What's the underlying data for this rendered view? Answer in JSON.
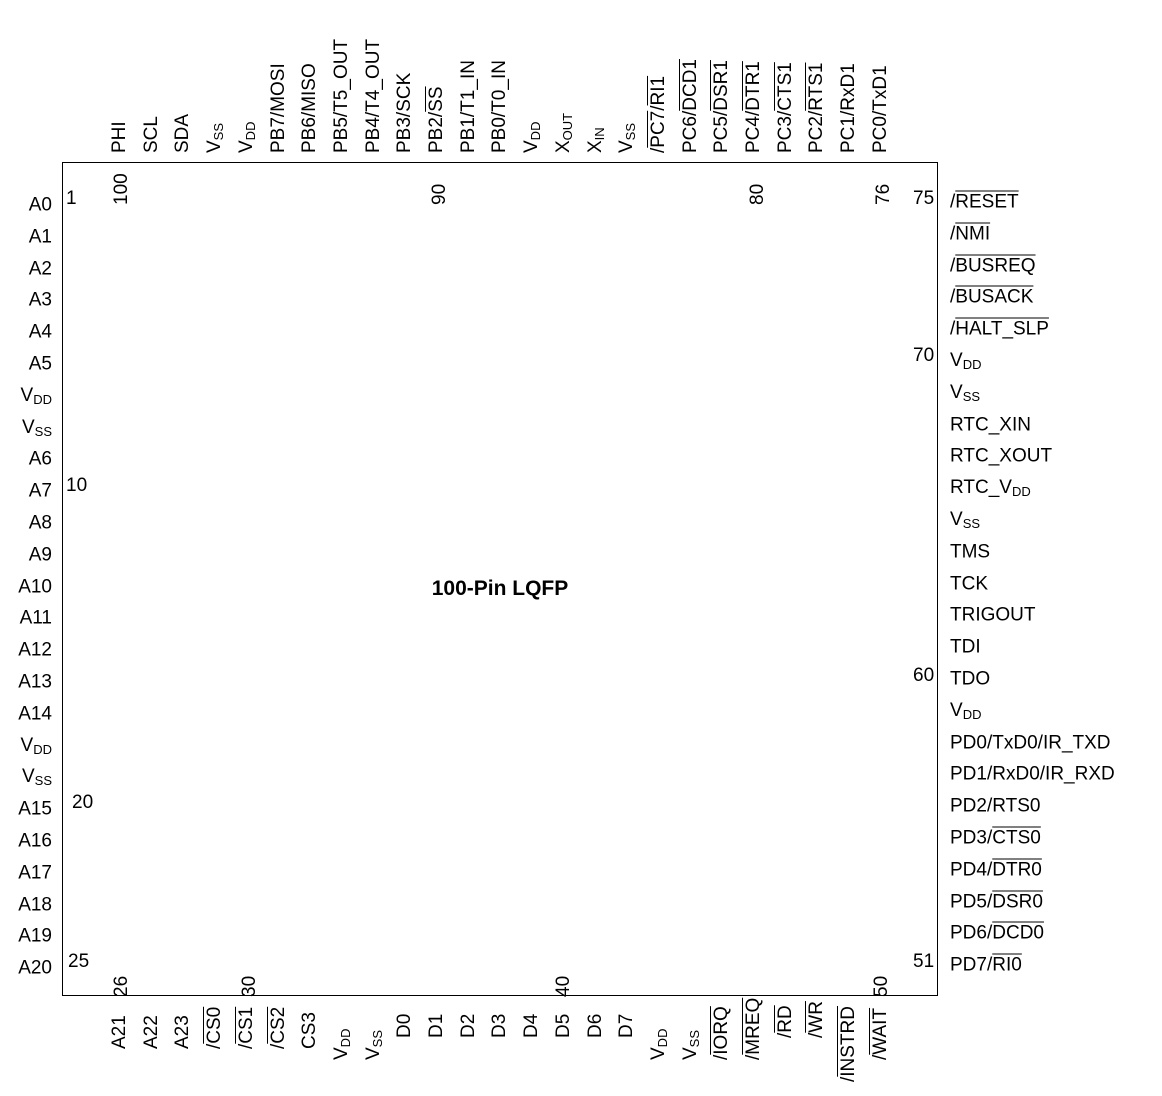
{
  "package_title": "100-Pin LQFP",
  "left_pins": [
    "A0",
    "A1",
    "A2",
    "A3",
    "A4",
    "A5",
    "V_DD",
    "V_SS",
    "A6",
    "A7",
    "A8",
    "A9",
    "A10",
    "A11",
    "A12",
    "A13",
    "A14",
    "V_DD",
    "V_SS",
    "A15",
    "A16",
    "A17",
    "A18",
    "A19",
    "A20"
  ],
  "bottom_pins": [
    "A21",
    "A22",
    "A23",
    "/CS0",
    "/CS1",
    "/CS2",
    "CS3",
    "V_DD",
    "V_SS",
    "D0",
    "D1",
    "D2",
    "D3",
    "D4",
    "D5",
    "D6",
    "D7",
    "V_DD",
    "V_SS",
    "/IORQ",
    "/MREQ",
    "/RD",
    "/WR",
    "/INSTRD",
    "/WAIT"
  ],
  "right_pins": [
    "PD7//RI0",
    "PD6//DCD0",
    "PD5//DSR0",
    "PD4//DTR0",
    "PD3//CTS0",
    "PD2/RTS0",
    "PD1/RxD0/IR_RXD",
    "PD0/TxD0/IR_TXD",
    "V_DD",
    "TDO",
    "TDI",
    "TRIGOUT",
    "TCK",
    "TMS",
    "V_SS",
    "RTC_V_DD",
    "RTC_XOUT",
    "RTC_XIN",
    "V_SS",
    "V_DD",
    "/HALT_SLP",
    "/BUSACK",
    "/BUSREQ",
    "/NMI",
    "/RESET"
  ],
  "top_pins": [
    "PHI",
    "SCL",
    "SDA",
    "V_SS",
    "V_DD",
    "PB7/MOSI",
    "PB6/MISO",
    "PB5/T5_OUT",
    "PB4/T4_OUT",
    "PB3/SCK",
    "PB2//SS",
    "PB1/T1_IN",
    "PB0/T0_IN",
    "V_DD",
    "X_OUT",
    "X_IN",
    "V_SS",
    "/PC7//RI1",
    "PC6//DCD1",
    "PC5//DSR1",
    "PC4//DTR1",
    "PC3//CTS1",
    "PC2//RTS1",
    "PC1/RxD1",
    "PC0/TxD1"
  ],
  "pin_numbers": {
    "left": [
      "1",
      "10",
      "20",
      "25"
    ],
    "bottom": [
      "26",
      "30",
      "40",
      "50"
    ],
    "right": [
      "51",
      "60",
      "70",
      "75"
    ],
    "top": [
      "76",
      "80",
      "90",
      "100"
    ]
  }
}
